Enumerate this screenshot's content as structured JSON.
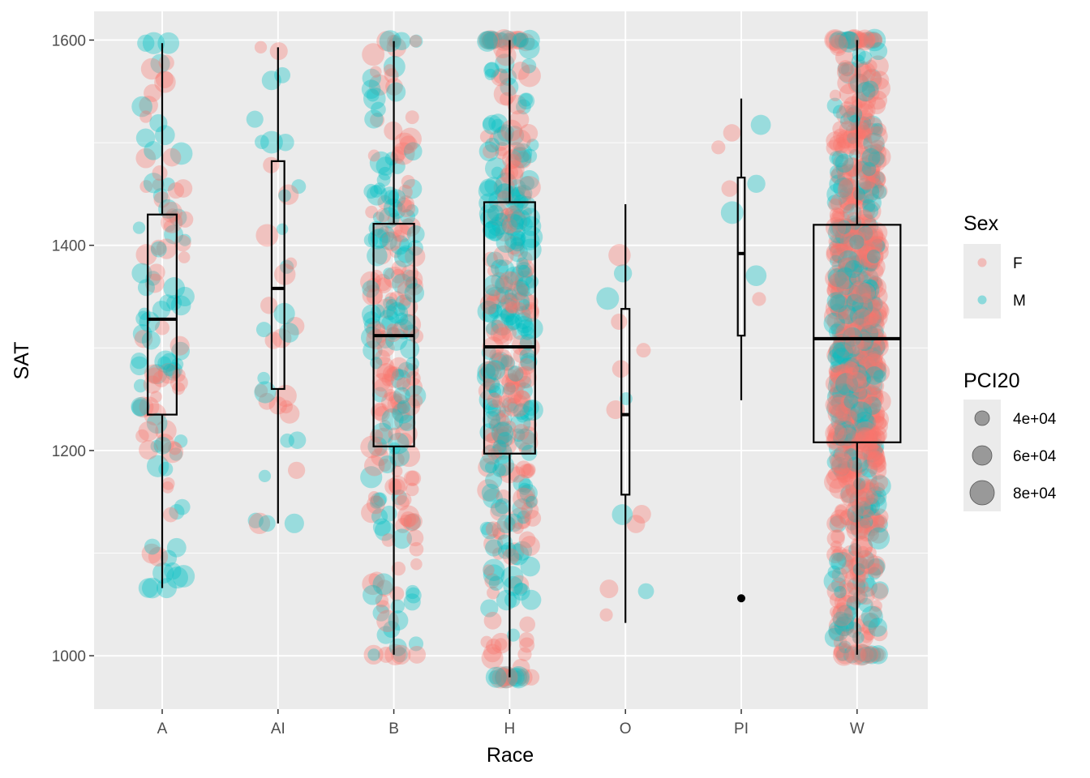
{
  "chart_data": {
    "type": "box",
    "xlabel": "Race",
    "ylabel": "SAT",
    "ylim": [
      948,
      1628
    ],
    "y_ticks": [
      1000,
      1200,
      1400,
      1600
    ],
    "y_tick_labels": [
      "1000",
      "1200",
      "1400",
      "1600"
    ],
    "categories": [
      "A",
      "AI",
      "B",
      "H",
      "O",
      "PI",
      "W"
    ],
    "boxes": [
      {
        "category": "A",
        "min": 1066,
        "q1": 1235,
        "median": 1328,
        "q3": 1430,
        "max": 1597,
        "width": 0.25,
        "outliers": []
      },
      {
        "category": "AI",
        "min": 1129,
        "q1": 1260,
        "median": 1358,
        "q3": 1482,
        "max": 1593,
        "width": 0.11,
        "outliers": []
      },
      {
        "category": "B",
        "min": 1001,
        "q1": 1204,
        "median": 1312,
        "q3": 1421,
        "max": 1599,
        "width": 0.35,
        "outliers": []
      },
      {
        "category": "H",
        "min": 979,
        "q1": 1197,
        "median": 1301,
        "q3": 1442,
        "max": 1600,
        "width": 0.44,
        "outliers": []
      },
      {
        "category": "O",
        "min": 1032,
        "q1": 1157,
        "median": 1235,
        "q3": 1338,
        "max": 1440,
        "width": 0.07,
        "outliers": []
      },
      {
        "category": "PI",
        "min": 1249,
        "q1": 1312,
        "median": 1392,
        "q3": 1466,
        "max": 1543,
        "width": 0.06,
        "outliers": [
          1056
        ]
      },
      {
        "category": "W",
        "min": 1001,
        "q1": 1208,
        "median": 1309,
        "q3": 1420,
        "max": 1600,
        "width": 0.75,
        "outliers": []
      }
    ],
    "points": {
      "count_per_category": [
        120,
        40,
        260,
        420,
        14,
        8,
        900
      ],
      "jitter": 0.2,
      "alpha": 0.35
    },
    "legend": {
      "position": "right",
      "color": {
        "title": "Sex",
        "entries": [
          {
            "label": "F",
            "color": "#F8766D"
          },
          {
            "label": "M",
            "color": "#00BFC4"
          }
        ]
      },
      "size": {
        "title": "PCI20",
        "entries": [
          {
            "label": "4e+04",
            "value": 40000
          },
          {
            "label": "6e+04",
            "value": 60000
          },
          {
            "label": "8e+04",
            "value": 80000
          }
        ]
      }
    },
    "grid": true
  },
  "colors": {
    "panel_bg": "#EBEBEB",
    "grid": "#FFFFFF",
    "female": "#F8766D",
    "male": "#00BFC4",
    "box_stroke": "#000000"
  }
}
